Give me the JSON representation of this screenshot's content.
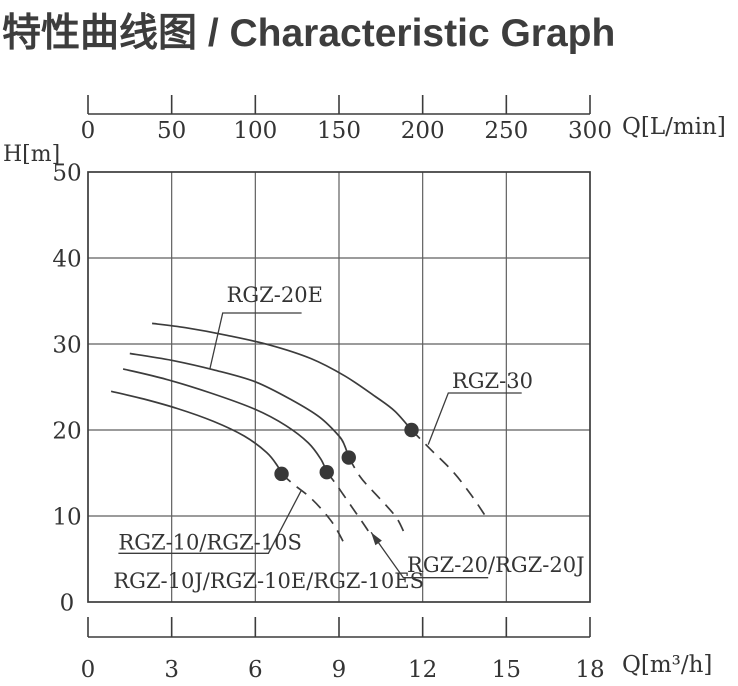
{
  "title": "特性曲线图 / Characteristic Graph",
  "colors": {
    "ink": "#3c3c3c",
    "grid": "#5f5f5f",
    "point": "#383838",
    "text": "#343434"
  },
  "chart_data": {
    "type": "line",
    "title": "特性曲线图 / Characteristic Graph",
    "top_axis": {
      "label": "Q[L/min]",
      "ticks": [
        0,
        50,
        100,
        150,
        200,
        250,
        300
      ],
      "range": [
        0,
        300
      ]
    },
    "bottom_axis": {
      "label": "Q[m³/h]",
      "ticks": [
        0,
        3,
        6,
        9,
        12,
        15,
        18
      ],
      "range": [
        0,
        18
      ]
    },
    "y_axis": {
      "label": "H[m]",
      "ticks": [
        0,
        10,
        20,
        30,
        40,
        50
      ],
      "range": [
        0,
        50
      ]
    },
    "grid": true,
    "series": [
      {
        "name": "RGZ-30",
        "solid": [
          [
            2.3,
            32.4
          ],
          [
            3.5,
            31.9
          ],
          [
            5,
            31.0
          ],
          [
            6.5,
            29.9
          ],
          [
            8,
            28.3
          ],
          [
            9.2,
            26.3
          ],
          [
            10.3,
            23.9
          ],
          [
            11,
            22.2
          ],
          [
            11.6,
            20
          ]
        ],
        "dashed": [
          [
            11.6,
            20
          ],
          [
            12.3,
            17.7
          ],
          [
            13.1,
            15.1
          ],
          [
            13.75,
            12.4
          ],
          [
            14.25,
            10
          ]
        ],
        "duty_point": [
          11.6,
          20
        ]
      },
      {
        "name": "RGZ-20E",
        "solid": [
          [
            1.5,
            28.9
          ],
          [
            3,
            28.1
          ],
          [
            4.5,
            27.0
          ],
          [
            6,
            25.6
          ],
          [
            7.3,
            23.5
          ],
          [
            8.3,
            21.5
          ],
          [
            9,
            19.3
          ],
          [
            9.2,
            18.2
          ],
          [
            9.35,
            16.8
          ]
        ],
        "dashed": [
          [
            9.35,
            16.8
          ],
          [
            9.75,
            14.6
          ],
          [
            10.15,
            13.1
          ],
          [
            10.7,
            11.2
          ],
          [
            11.1,
            9.6
          ],
          [
            11.4,
            7.6
          ]
        ],
        "duty_point": [
          9.35,
          16.8
        ]
      },
      {
        "name": "RGZ-20/RGZ-20J",
        "solid": [
          [
            1.26,
            27.1
          ],
          [
            2.8,
            25.9
          ],
          [
            4.4,
            24.3
          ],
          [
            6,
            22.4
          ],
          [
            7.1,
            20.5
          ],
          [
            7.9,
            18.5
          ],
          [
            8.35,
            16.6
          ],
          [
            8.56,
            15.1
          ]
        ],
        "dashed": [
          [
            8.56,
            15.1
          ],
          [
            8.85,
            13.9
          ],
          [
            9.15,
            12.5
          ],
          [
            9.45,
            11.1
          ],
          [
            9.75,
            9.7
          ],
          [
            10,
            8.5
          ],
          [
            10.2,
            7.5
          ]
        ],
        "duty_point": [
          8.56,
          15.1
        ]
      },
      {
        "name": "RGZ-10/RGZ-10S/RGZ-10J/RGZ-10E/RGZ-10ES",
        "solid": [
          [
            0.83,
            24.5
          ],
          [
            2,
            23.6
          ],
          [
            3.2,
            22.5
          ],
          [
            4.5,
            21.0
          ],
          [
            5.6,
            19.3
          ],
          [
            6.4,
            17.4
          ],
          [
            6.8,
            15.8
          ],
          [
            6.94,
            14.9
          ]
        ],
        "dashed": [
          [
            6.94,
            14.9
          ],
          [
            7.4,
            13.6
          ],
          [
            7.95,
            12.2
          ],
          [
            8.45,
            10.5
          ],
          [
            8.85,
            8.8
          ],
          [
            9.25,
            6.4
          ]
        ],
        "duty_point": [
          6.94,
          14.9
        ]
      }
    ],
    "annotations": [
      {
        "text": "RGZ-20E",
        "text_q": 4.97,
        "text_h": 34.9,
        "leader": [
          [
            7.66,
            33.6
          ],
          [
            4.83,
            33.6
          ],
          [
            4.37,
            27.1
          ]
        ],
        "arrow": false
      },
      {
        "text": "RGZ-30",
        "text_q": 13.05,
        "text_h": 24.9,
        "leader": [
          [
            15.55,
            24.3
          ],
          [
            12.92,
            24.3
          ],
          [
            12.2,
            18.3
          ]
        ],
        "arrow": false
      },
      {
        "text": "RGZ-10/RGZ-10S",
        "text_q": 1.09,
        "text_h": 6.1,
        "leader": [
          [
            1.09,
            5.66
          ],
          [
            6.47,
            5.66
          ],
          [
            7.65,
            13.0
          ]
        ],
        "arrow": false
      },
      {
        "text": "RGZ-10J/RGZ-10E/RGZ-10ES",
        "text_q": 0.91,
        "text_h": 1.6,
        "leader": null,
        "arrow": false
      },
      {
        "text": "RGZ-20/RGZ-20J",
        "text_q": 11.44,
        "text_h": 3.5,
        "leader": [
          [
            14.35,
            2.83
          ],
          [
            11.31,
            2.83
          ],
          [
            10.15,
            8.1
          ]
        ],
        "arrow": true
      }
    ],
    "legend": false,
    "notes": "curves drawn solid up to duty point, dashed beyond it"
  }
}
